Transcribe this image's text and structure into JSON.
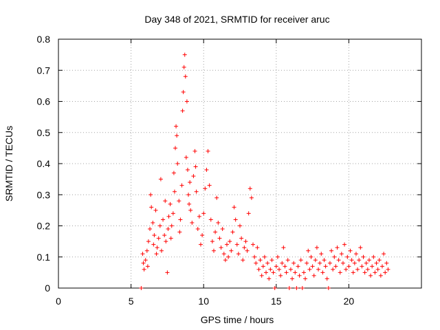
{
  "chart_data": {
    "type": "scatter",
    "title": "Day 348 of 2021, SRMTID for receiver aruc",
    "xlabel": "GPS time / hours",
    "ylabel": "SRMTID / TECUs",
    "xlim": [
      0,
      25
    ],
    "ylim": [
      0,
      0.8
    ],
    "x_ticks": [
      0,
      5,
      10,
      15,
      20
    ],
    "x_tick_labels": [
      "0",
      "5",
      "10",
      "15",
      "20"
    ],
    "y_ticks": [
      0,
      0.1,
      0.2,
      0.3,
      0.4,
      0.5,
      0.6,
      0.7,
      0.8
    ],
    "y_tick_labels": [
      "0",
      "0.1",
      "0.2",
      "0.3",
      "0.4",
      "0.5",
      "0.6",
      "0.7",
      "0.8"
    ],
    "grid": true,
    "marker": "plus",
    "color": "#ff0000",
    "series": [
      {
        "name": "SRMTID",
        "points": [
          [
            5.7,
            0.0
          ],
          [
            5.8,
            0.11
          ],
          [
            5.85,
            0.08
          ],
          [
            5.9,
            0.06
          ],
          [
            6.0,
            0.09
          ],
          [
            6.1,
            0.12
          ],
          [
            6.15,
            0.07
          ],
          [
            6.2,
            0.15
          ],
          [
            6.3,
            0.19
          ],
          [
            6.35,
            0.3
          ],
          [
            6.4,
            0.26
          ],
          [
            6.5,
            0.21
          ],
          [
            6.55,
            0.14
          ],
          [
            6.6,
            0.17
          ],
          [
            6.7,
            0.25
          ],
          [
            6.75,
            0.11
          ],
          [
            6.8,
            0.13
          ],
          [
            6.9,
            0.16
          ],
          [
            7.0,
            0.2
          ],
          [
            7.05,
            0.35
          ],
          [
            7.1,
            0.12
          ],
          [
            7.2,
            0.22
          ],
          [
            7.3,
            0.17
          ],
          [
            7.35,
            0.28
          ],
          [
            7.4,
            0.15
          ],
          [
            7.5,
            0.05
          ],
          [
            7.55,
            0.19
          ],
          [
            7.6,
            0.23
          ],
          [
            7.7,
            0.27
          ],
          [
            7.75,
            0.16
          ],
          [
            7.8,
            0.2
          ],
          [
            7.9,
            0.24
          ],
          [
            7.95,
            0.37
          ],
          [
            8.0,
            0.31
          ],
          [
            8.05,
            0.45
          ],
          [
            8.1,
            0.52
          ],
          [
            8.15,
            0.49
          ],
          [
            8.2,
            0.4
          ],
          [
            8.3,
            0.28
          ],
          [
            8.35,
            0.18
          ],
          [
            8.4,
            0.22
          ],
          [
            8.5,
            0.33
          ],
          [
            8.55,
            0.57
          ],
          [
            8.6,
            0.63
          ],
          [
            8.65,
            0.71
          ],
          [
            8.7,
            0.75
          ],
          [
            8.75,
            0.68
          ],
          [
            8.8,
            0.42
          ],
          [
            8.85,
            0.6
          ],
          [
            8.9,
            0.38
          ],
          [
            8.95,
            0.3
          ],
          [
            9.0,
            0.27
          ],
          [
            9.05,
            0.34
          ],
          [
            9.1,
            0.25
          ],
          [
            9.2,
            0.21
          ],
          [
            9.3,
            0.36
          ],
          [
            9.4,
            0.44
          ],
          [
            9.45,
            0.39
          ],
          [
            9.5,
            0.31
          ],
          [
            9.6,
            0.19
          ],
          [
            9.7,
            0.23
          ],
          [
            9.8,
            0.14
          ],
          [
            9.9,
            0.17
          ],
          [
            10.0,
            0.24
          ],
          [
            10.1,
            0.32
          ],
          [
            10.2,
            0.38
          ],
          [
            10.3,
            0.44
          ],
          [
            10.4,
            0.33
          ],
          [
            10.5,
            0.22
          ],
          [
            10.6,
            0.15
          ],
          [
            10.7,
            0.12
          ],
          [
            10.8,
            0.18
          ],
          [
            10.9,
            0.29
          ],
          [
            11.0,
            0.21
          ],
          [
            11.1,
            0.16
          ],
          [
            11.2,
            0.13
          ],
          [
            11.3,
            0.19
          ],
          [
            11.4,
            0.11
          ],
          [
            11.5,
            0.09
          ],
          [
            11.6,
            0.14
          ],
          [
            11.7,
            0.1
          ],
          [
            11.8,
            0.15
          ],
          [
            11.9,
            0.12
          ],
          [
            12.0,
            0.18
          ],
          [
            12.1,
            0.26
          ],
          [
            12.2,
            0.22
          ],
          [
            12.3,
            0.14
          ],
          [
            12.4,
            0.11
          ],
          [
            12.5,
            0.2
          ],
          [
            12.6,
            0.16
          ],
          [
            12.7,
            0.09
          ],
          [
            12.8,
            0.13
          ],
          [
            12.9,
            0.15
          ],
          [
            13.0,
            0.12
          ],
          [
            13.1,
            0.24
          ],
          [
            13.2,
            0.32
          ],
          [
            13.3,
            0.29
          ],
          [
            13.4,
            0.14
          ],
          [
            13.5,
            0.1
          ],
          [
            13.6,
            0.08
          ],
          [
            13.7,
            0.13
          ],
          [
            13.8,
            0.06
          ],
          [
            13.9,
            0.09
          ],
          [
            14.0,
            0.04
          ],
          [
            14.1,
            0.07
          ],
          [
            14.2,
            0.1
          ],
          [
            14.3,
            0.05
          ],
          [
            14.4,
            0.08
          ],
          [
            14.5,
            0.03
          ],
          [
            14.6,
            0.06
          ],
          [
            14.7,
            0.09
          ],
          [
            14.8,
            0.05
          ],
          [
            14.9,
            0.0
          ],
          [
            15.0,
            0.07
          ],
          [
            15.1,
            0.1
          ],
          [
            15.2,
            0.06
          ],
          [
            15.3,
            0.04
          ],
          [
            15.4,
            0.08
          ],
          [
            15.5,
            0.13
          ],
          [
            15.6,
            0.07
          ],
          [
            15.7,
            0.05
          ],
          [
            15.8,
            0.09
          ],
          [
            15.9,
            0.0
          ],
          [
            16.0,
            0.06
          ],
          [
            16.1,
            0.03
          ],
          [
            16.2,
            0.08
          ],
          [
            16.3,
            0.05
          ],
          [
            16.4,
            0.0
          ],
          [
            16.5,
            0.07
          ],
          [
            16.6,
            0.04
          ],
          [
            16.7,
            0.09
          ],
          [
            16.8,
            0.0
          ],
          [
            16.9,
            0.05
          ],
          [
            17.0,
            0.03
          ],
          [
            17.1,
            0.08
          ],
          [
            17.2,
            0.12
          ],
          [
            17.3,
            0.06
          ],
          [
            17.4,
            0.1
          ],
          [
            17.5,
            0.07
          ],
          [
            17.6,
            0.04
          ],
          [
            17.7,
            0.09
          ],
          [
            17.8,
            0.13
          ],
          [
            17.9,
            0.06
          ],
          [
            18.0,
            0.08
          ],
          [
            18.1,
            0.11
          ],
          [
            18.2,
            0.05
          ],
          [
            18.3,
            0.09
          ],
          [
            18.4,
            0.07
          ],
          [
            18.5,
            0.03
          ],
          [
            18.6,
            0.0
          ],
          [
            18.7,
            0.08
          ],
          [
            18.8,
            0.12
          ],
          [
            18.9,
            0.06
          ],
          [
            19.0,
            0.1
          ],
          [
            19.1,
            0.07
          ],
          [
            19.2,
            0.13
          ],
          [
            19.3,
            0.09
          ],
          [
            19.4,
            0.05
          ],
          [
            19.5,
            0.11
          ],
          [
            19.6,
            0.08
          ],
          [
            19.7,
            0.14
          ],
          [
            19.8,
            0.06
          ],
          [
            19.9,
            0.1
          ],
          [
            20.0,
            0.07
          ],
          [
            20.1,
            0.12
          ],
          [
            20.2,
            0.09
          ],
          [
            20.3,
            0.05
          ],
          [
            20.4,
            0.08
          ],
          [
            20.5,
            0.11
          ],
          [
            20.6,
            0.06
          ],
          [
            20.7,
            0.09
          ],
          [
            20.8,
            0.13
          ],
          [
            20.9,
            0.07
          ],
          [
            21.0,
            0.1
          ],
          [
            21.1,
            0.05
          ],
          [
            21.2,
            0.08
          ],
          [
            21.3,
            0.06
          ],
          [
            21.4,
            0.09
          ],
          [
            21.5,
            0.04
          ],
          [
            21.6,
            0.07
          ],
          [
            21.7,
            0.1
          ],
          [
            21.8,
            0.05
          ],
          [
            21.9,
            0.08
          ],
          [
            22.0,
            0.06
          ],
          [
            22.1,
            0.09
          ],
          [
            22.2,
            0.04
          ],
          [
            22.3,
            0.07
          ],
          [
            22.4,
            0.11
          ],
          [
            22.5,
            0.05
          ],
          [
            22.6,
            0.08
          ],
          [
            22.7,
            0.06
          ]
        ]
      }
    ]
  }
}
